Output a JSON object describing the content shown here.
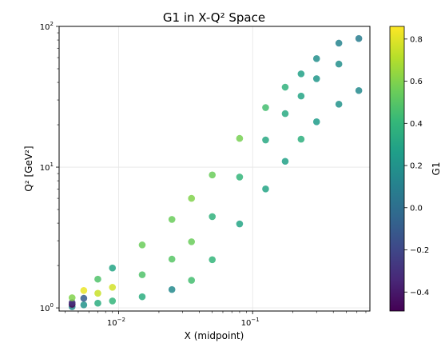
{
  "chart_data": {
    "type": "scatter",
    "title": "G1 in X-Q² Space",
    "xlabel": "X (midpoint)",
    "ylabel": "Q² [GeV²]",
    "xscale": "log",
    "yscale": "log",
    "xlim": [
      0.0036,
      0.75
    ],
    "ylim": [
      0.95,
      100
    ],
    "grid": true,
    "x_ticks": [
      {
        "value": 0.01,
        "label": "10",
        "exp": "−2"
      },
      {
        "value": 0.1,
        "label": "10",
        "exp": "−1"
      }
    ],
    "y_ticks": [
      {
        "value": 1,
        "label": "10",
        "exp": "0"
      },
      {
        "value": 10,
        "label": "10",
        "exp": "1"
      },
      {
        "value": 100,
        "label": "10",
        "exp": "2"
      }
    ],
    "colorbar": {
      "label": "G1",
      "min": -0.49,
      "max": 0.86,
      "ticks": [
        {
          "value": -0.4,
          "label": "−0.4"
        },
        {
          "value": -0.2,
          "label": "−0.2"
        },
        {
          "value": 0.0,
          "label": "0.0"
        },
        {
          "value": 0.2,
          "label": "0.2"
        },
        {
          "value": 0.4,
          "label": "0.4"
        },
        {
          "value": 0.6,
          "label": "0.6"
        },
        {
          "value": 0.8,
          "label": "0.8"
        }
      ],
      "colormap": [
        "#440154",
        "#482878",
        "#3e4989",
        "#31688e",
        "#26828e",
        "#1f9e89",
        "#35b779",
        "#6ece58",
        "#b5de2b",
        "#fde725"
      ]
    },
    "points": [
      {
        "x": 0.0045,
        "y": 1.02,
        "g1": 0.15
      },
      {
        "x": 0.0045,
        "y": 1.06,
        "g1": -0.49
      },
      {
        "x": 0.0045,
        "y": 1.09,
        "g1": -0.3
      },
      {
        "x": 0.0045,
        "y": 1.18,
        "g1": 0.6
      },
      {
        "x": 0.0055,
        "y": 1.05,
        "g1": 0.2
      },
      {
        "x": 0.0055,
        "y": 1.17,
        "g1": -0.1
      },
      {
        "x": 0.0055,
        "y": 1.33,
        "g1": 0.82
      },
      {
        "x": 0.007,
        "y": 1.08,
        "g1": 0.35
      },
      {
        "x": 0.007,
        "y": 1.27,
        "g1": 0.75
      },
      {
        "x": 0.007,
        "y": 1.6,
        "g1": 0.48
      },
      {
        "x": 0.009,
        "y": 1.12,
        "g1": 0.4
      },
      {
        "x": 0.009,
        "y": 1.4,
        "g1": 0.77
      },
      {
        "x": 0.009,
        "y": 1.92,
        "g1": 0.3
      },
      {
        "x": 0.015,
        "y": 1.2,
        "g1": 0.35
      },
      {
        "x": 0.015,
        "y": 1.72,
        "g1": 0.48
      },
      {
        "x": 0.015,
        "y": 2.8,
        "g1": 0.55
      },
      {
        "x": 0.025,
        "y": 1.35,
        "g1": 0.15
      },
      {
        "x": 0.025,
        "y": 2.22,
        "g1": 0.5
      },
      {
        "x": 0.025,
        "y": 4.25,
        "g1": 0.55
      },
      {
        "x": 0.035,
        "y": 1.57,
        "g1": 0.45
      },
      {
        "x": 0.035,
        "y": 2.95,
        "g1": 0.55
      },
      {
        "x": 0.035,
        "y": 6.0,
        "g1": 0.6
      },
      {
        "x": 0.05,
        "y": 2.2,
        "g1": 0.4
      },
      {
        "x": 0.05,
        "y": 4.45,
        "g1": 0.38
      },
      {
        "x": 0.05,
        "y": 8.8,
        "g1": 0.55
      },
      {
        "x": 0.08,
        "y": 3.95,
        "g1": 0.3
      },
      {
        "x": 0.08,
        "y": 8.5,
        "g1": 0.4
      },
      {
        "x": 0.08,
        "y": 16.0,
        "g1": 0.58
      },
      {
        "x": 0.125,
        "y": 7.0,
        "g1": 0.3
      },
      {
        "x": 0.125,
        "y": 15.6,
        "g1": 0.32
      },
      {
        "x": 0.125,
        "y": 26.5,
        "g1": 0.45
      },
      {
        "x": 0.175,
        "y": 11.0,
        "g1": 0.28
      },
      {
        "x": 0.175,
        "y": 24.0,
        "g1": 0.33
      },
      {
        "x": 0.175,
        "y": 37.0,
        "g1": 0.38
      },
      {
        "x": 0.23,
        "y": 15.8,
        "g1": 0.36
      },
      {
        "x": 0.23,
        "y": 32.0,
        "g1": 0.3
      },
      {
        "x": 0.23,
        "y": 46.0,
        "g1": 0.28
      },
      {
        "x": 0.3,
        "y": 21.0,
        "g1": 0.25
      },
      {
        "x": 0.3,
        "y": 42.5,
        "g1": 0.22
      },
      {
        "x": 0.3,
        "y": 59.0,
        "g1": 0.18
      },
      {
        "x": 0.44,
        "y": 28.0,
        "g1": 0.2
      },
      {
        "x": 0.44,
        "y": 54.0,
        "g1": 0.18
      },
      {
        "x": 0.44,
        "y": 76.0,
        "g1": 0.12
      },
      {
        "x": 0.62,
        "y": 35.0,
        "g1": 0.15
      },
      {
        "x": 0.62,
        "y": 82.0,
        "g1": 0.08
      }
    ]
  }
}
